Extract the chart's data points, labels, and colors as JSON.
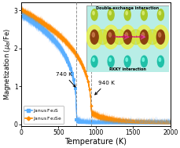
{
  "xlabel": "Temperature (K)",
  "ylabel": "Magnetization ($\\mu_B$/Fe)",
  "xlim": [
    0,
    2000
  ],
  "ylim": [
    -0.05,
    3.2
  ],
  "xticks": [
    0,
    500,
    1000,
    1500,
    2000
  ],
  "yticks": [
    0,
    1,
    2,
    3
  ],
  "fe2s_color": "#5aafff",
  "fe2se_color": "#ff8c00",
  "fe2s_tc": 740,
  "fe2se_tc": 940,
  "vline1": 740,
  "vline2": 940,
  "inset_title_top": "Double-exchange interaction",
  "inset_title_bottom": "RKKY interaction",
  "legend_fe2s": "Janus Fe$_2$S",
  "legend_fe2se": "Janus Fe$_2$Se",
  "bg_color": "#ffffff",
  "annotation_740": "740 K",
  "annotation_940": "940 K",
  "inset_bg": "#c8ede8",
  "inset_orbital_color": "#d4e84a",
  "inset_fe_color": "#8B5a2B",
  "inset_s_top_color": "#40c0b0",
  "inset_s_bot_color": "#b8d030"
}
